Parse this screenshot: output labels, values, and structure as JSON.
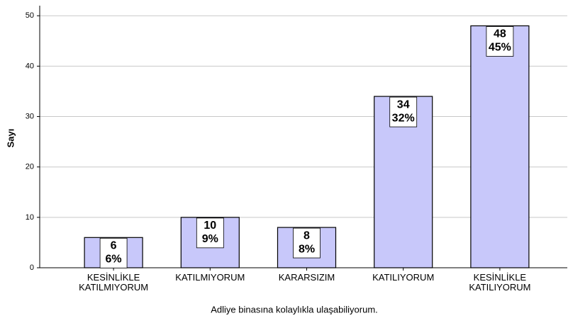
{
  "chart_data": {
    "type": "bar",
    "x_label": "Adliye binasına kolaylıkla ulaşabiliyorum.",
    "y_label": "Sayı",
    "categories": [
      "KESİNLİKLE KATILMIYORUM",
      "KATILMIYORUM",
      "KARARSIZIM",
      "KATILIYORUM",
      "KESİNLİKLE KATILIYORUM"
    ],
    "values": [
      6,
      10,
      8,
      34,
      48
    ],
    "percent_labels": [
      "6%",
      "9%",
      "8%",
      "32%",
      "45%"
    ],
    "color": "#c8c8fa",
    "ylim": [
      0,
      52
    ],
    "yticks": [
      0,
      10,
      20,
      30,
      40,
      50
    ],
    "grid": true
  }
}
